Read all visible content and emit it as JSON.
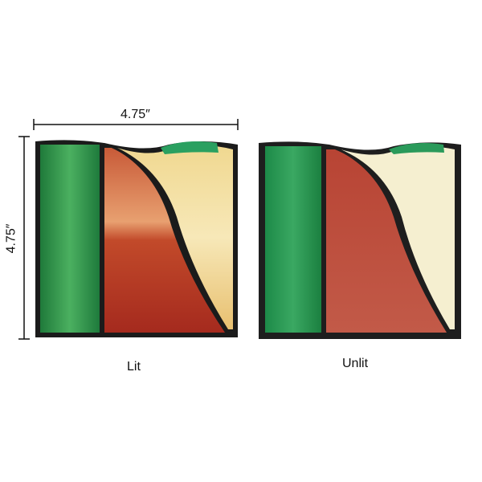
{
  "dimensions": {
    "width_label": "4.75″",
    "height_label": "4.75″"
  },
  "panels": [
    {
      "caption": "Lit"
    },
    {
      "caption": "Unlit"
    }
  ],
  "colors": {
    "green_glass": "#2f9a4e",
    "red_glass": "#b8402e",
    "cream_glass": "#f2dfa0",
    "lead_came": "#1b1b1b"
  }
}
